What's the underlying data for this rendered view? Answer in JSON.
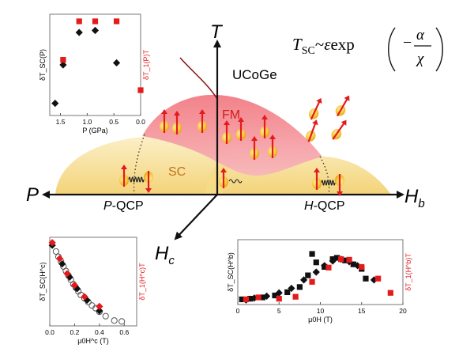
{
  "material": "UCoGe",
  "formula": {
    "lhs": "T",
    "lhs_sub": "SC",
    "sim": "~",
    "eps": "ε",
    "exp": "exp",
    "alpha": "α",
    "chi": "χ"
  },
  "axes": {
    "T": "T",
    "P": "P",
    "Hb": "H",
    "Hb_sub": "b",
    "Hc": "H",
    "Hc_sub": "c"
  },
  "regions": {
    "FM": "FM",
    "SC": "SC",
    "p_qcp": "P-QCP",
    "h_qcp": "H-QCP",
    "p_qcp_letter": "P",
    "h_qcp_letter": "H",
    "qcp_suffix": "-QCP"
  },
  "colors": {
    "fm": "#f08a90",
    "sc": "#f6dc86",
    "red": "#e41a1c",
    "black": "#000000",
    "axis": "#111111",
    "line_dark_red": "#8b1010"
  },
  "chart_data": [
    {
      "type": "scatter",
      "xlabel": "P (GPa)",
      "ylabel_left": "δT_SC(P)",
      "ylabel_right": "δT_1(P)T",
      "xticks": [
        "1.5",
        "1.0",
        "0.5",
        "0.0"
      ],
      "xlim": [
        1.7,
        0.0
      ],
      "ylim": [
        0,
        1
      ],
      "series": [
        {
          "color": "black",
          "marker": "diamond",
          "points": [
            [
              1.6,
              0.12
            ],
            [
              1.45,
              0.5
            ],
            [
              1.15,
              0.82
            ],
            [
              0.85,
              0.84
            ],
            [
              0.45,
              0.52
            ]
          ]
        },
        {
          "color": "red",
          "marker": "square",
          "points": [
            [
              1.45,
              0.55
            ],
            [
              1.15,
              0.93
            ],
            [
              0.85,
              0.93
            ],
            [
              0.45,
              0.93
            ],
            [
              0.0,
              0.25
            ]
          ]
        }
      ]
    },
    {
      "type": "scatter",
      "xlabel": "μ0H^c (T)",
      "ylabel_left": "δT_SC(H^c)",
      "ylabel_right": "δT_1(H^c)T",
      "xticks": [
        "0.0",
        "0.2",
        "0.4",
        "0.6"
      ],
      "xlim": [
        0.0,
        0.7
      ],
      "ylim": [
        0,
        1
      ],
      "series": [
        {
          "color": "black",
          "marker": "circle-open",
          "points": [
            [
              0.05,
              0.84
            ],
            [
              0.07,
              0.78
            ],
            [
              0.09,
              0.73
            ],
            [
              0.11,
              0.67
            ],
            [
              0.13,
              0.62
            ],
            [
              0.15,
              0.57
            ],
            [
              0.17,
              0.52
            ],
            [
              0.19,
              0.47
            ],
            [
              0.21,
              0.43
            ],
            [
              0.23,
              0.39
            ],
            [
              0.25,
              0.35
            ],
            [
              0.28,
              0.31
            ],
            [
              0.31,
              0.27
            ],
            [
              0.34,
              0.23
            ],
            [
              0.37,
              0.2
            ],
            [
              0.4,
              0.16
            ],
            [
              0.45,
              0.11
            ],
            [
              0.52,
              0.06
            ],
            [
              0.58,
              0.05
            ]
          ]
        },
        {
          "color": "black",
          "marker": "diamond",
          "points": [
            [
              0.02,
              0.91
            ],
            [
              0.1,
              0.7
            ],
            [
              0.16,
              0.55
            ],
            [
              0.22,
              0.42
            ],
            [
              0.3,
              0.29
            ],
            [
              0.4,
              0.17
            ]
          ]
        },
        {
          "color": "red",
          "marker": "diamond",
          "points": [
            [
              0.02,
              0.94
            ],
            [
              0.08,
              0.76
            ],
            [
              0.14,
              0.59
            ],
            [
              0.2,
              0.46
            ],
            [
              0.28,
              0.33
            ],
            [
              0.4,
              0.22
            ]
          ]
        }
      ]
    },
    {
      "type": "scatter",
      "xlabel": "μ0H (T)",
      "ylabel_left": "δT_SC(H^b)",
      "ylabel_right": "δT_1(H^b)T",
      "xticks": [
        "0",
        "5",
        "10",
        "15",
        "20"
      ],
      "xlim": [
        0,
        20
      ],
      "ylim": [
        0,
        1
      ],
      "series": [
        {
          "color": "black",
          "marker": "square",
          "points": [
            [
              0.5,
              0.08
            ],
            [
              1.5,
              0.09
            ],
            [
              3,
              0.11
            ],
            [
              4.5,
              0.14
            ],
            [
              6,
              0.19
            ],
            [
              7.5,
              0.27
            ],
            [
              8.5,
              0.45
            ],
            [
              9,
              0.78
            ],
            [
              9.5,
              0.65
            ],
            [
              10.5,
              0.58
            ],
            [
              11.5,
              0.7
            ],
            [
              12,
              0.72
            ],
            [
              12.5,
              0.7
            ],
            [
              13,
              0.68
            ],
            [
              14,
              0.62
            ],
            [
              15,
              0.55
            ],
            [
              15.5,
              0.4
            ]
          ]
        },
        {
          "color": "black",
          "marker": "diamond",
          "points": [
            [
              1,
              0.07
            ],
            [
              2,
              0.1
            ],
            [
              3.5,
              0.13
            ],
            [
              5,
              0.18
            ],
            [
              6.5,
              0.25
            ],
            [
              8,
              0.38
            ],
            [
              9.5,
              0.5
            ],
            [
              10.5,
              0.6
            ],
            [
              11.5,
              0.67
            ],
            [
              12.5,
              0.7
            ],
            [
              13.5,
              0.66
            ],
            [
              14.5,
              0.6
            ],
            [
              16.5,
              0.38
            ]
          ]
        },
        {
          "color": "red",
          "marker": "square",
          "points": [
            [
              1,
              0.08
            ],
            [
              2.5,
              0.11
            ],
            [
              5,
              0.09
            ],
            [
              7,
              0.12
            ],
            [
              9,
              0.35
            ],
            [
              11,
              0.57
            ],
            [
              12.5,
              0.7
            ],
            [
              13.5,
              0.69
            ],
            [
              15,
              0.58
            ],
            [
              17,
              0.4
            ],
            [
              18.5,
              0.18
            ]
          ]
        }
      ]
    }
  ]
}
